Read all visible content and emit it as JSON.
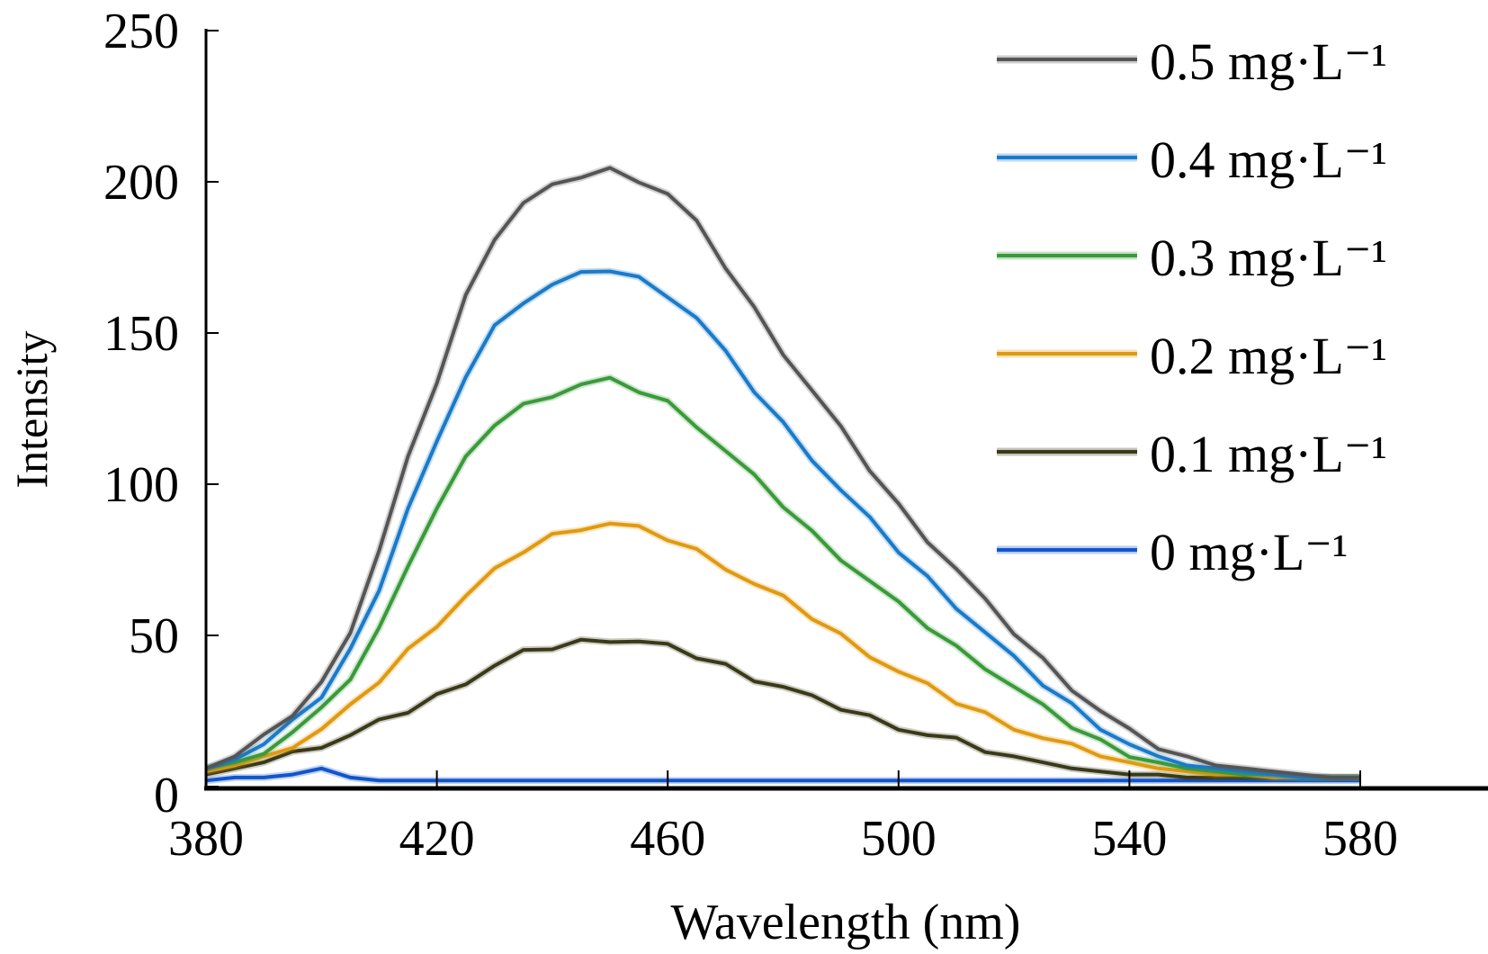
{
  "chart_data": {
    "type": "line",
    "title": "",
    "xlabel": "Wavelength (nm)",
    "ylabel": "Intensity",
    "xlim": [
      380,
      580
    ],
    "ylim": [
      0,
      250
    ],
    "xticks": [
      380,
      420,
      460,
      500,
      540,
      580
    ],
    "yticks": [
      0,
      50,
      100,
      150,
      200,
      250
    ],
    "grid": false,
    "legend_position": "top-right",
    "x": [
      380,
      385,
      390,
      395,
      400,
      405,
      410,
      415,
      420,
      425,
      430,
      435,
      440,
      445,
      450,
      455,
      460,
      465,
      470,
      475,
      480,
      485,
      490,
      495,
      500,
      505,
      510,
      515,
      520,
      525,
      530,
      535,
      540,
      545,
      550,
      555,
      560,
      565,
      570,
      575,
      580
    ],
    "series": [
      {
        "name": "0.5 mg·L⁻¹",
        "color": "#555555",
        "values": [
          6,
          10,
          16,
          24,
          34,
          52,
          78,
          108,
          134,
          162,
          182,
          193,
          198,
          202,
          204,
          201,
          196,
          186,
          172,
          158,
          144,
          131,
          118,
          105,
          93,
          82,
          72,
          61,
          51,
          42,
          33,
          25,
          18,
          13,
          10,
          7,
          6,
          5,
          4,
          3,
          3
        ]
      },
      {
        "name": "0.4 mg·L⁻¹",
        "color": "#1a7bc8",
        "values": [
          6,
          9,
          14,
          21,
          30,
          45,
          66,
          92,
          113,
          136,
          152,
          161,
          166,
          169,
          171,
          168,
          163,
          155,
          143,
          131,
          120,
          109,
          98,
          88,
          78,
          69,
          60,
          51,
          42,
          34,
          27,
          20,
          14,
          10,
          7,
          6,
          5,
          4,
          3,
          3,
          3
        ]
      },
      {
        "name": "0.3 mg·L⁻¹",
        "color": "#3a9a3a",
        "values": [
          6,
          8,
          12,
          18,
          25,
          36,
          52,
          74,
          92,
          108,
          120,
          126,
          130,
          133,
          134,
          131,
          127,
          120,
          111,
          102,
          93,
          84,
          76,
          68,
          60,
          53,
          46,
          40,
          33,
          26,
          20,
          15,
          11,
          8,
          6,
          5,
          4,
          4,
          3,
          3,
          3
        ]
      },
      {
        "name": "0.2 mg·L⁻¹",
        "color": "#e09a10",
        "values": [
          5,
          7,
          10,
          14,
          19,
          26,
          35,
          45,
          54,
          63,
          71,
          78,
          83,
          86,
          87,
          85,
          82,
          78,
          73,
          67,
          62,
          56,
          50,
          44,
          38,
          33,
          28,
          24,
          20,
          16,
          13,
          10,
          8,
          6,
          5,
          4,
          4,
          3,
          3,
          3,
          3
        ]
      },
      {
        "name": "0.1 mg·L⁻¹",
        "color": "#3a3a1a",
        "values": [
          4,
          6,
          8,
          11,
          14,
          17,
          21,
          25,
          30,
          35,
          40,
          44,
          46,
          48,
          49,
          48,
          46,
          43,
          40,
          36,
          33,
          29,
          26,
          23,
          20,
          17,
          15,
          12,
          10,
          8,
          6,
          5,
          4,
          4,
          3,
          3,
          3,
          3,
          3,
          3,
          3
        ]
      },
      {
        "name": "0 mg·L⁻¹",
        "color": "#1155cc",
        "values": [
          2,
          3,
          3,
          4,
          6,
          3,
          2,
          2,
          2,
          2,
          2,
          2,
          2,
          2,
          2,
          2,
          2,
          2,
          2,
          2,
          2,
          2,
          2,
          2,
          2,
          2,
          2,
          2,
          2,
          2,
          2,
          2,
          2,
          2,
          2,
          2,
          2,
          2,
          2,
          2,
          2
        ]
      }
    ]
  }
}
